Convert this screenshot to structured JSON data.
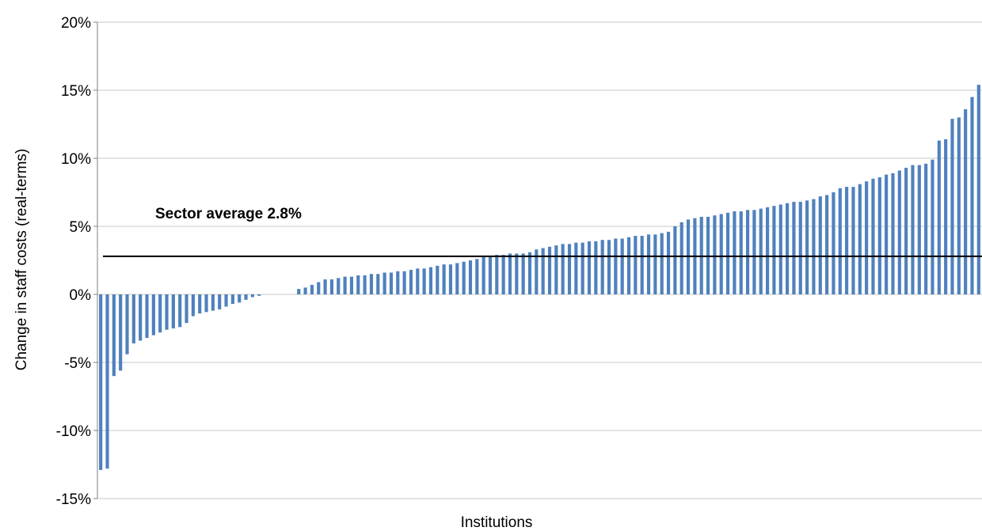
{
  "chart_data": {
    "type": "bar",
    "xlabel": "Institutions",
    "ylabel": "Change in staff costs (real-terms)",
    "ylim": [
      -15,
      20
    ],
    "yticks": [
      20,
      15,
      10,
      5,
      0,
      -5,
      -10,
      -15
    ],
    "ytick_labels": [
      "20%",
      "15%",
      "10%",
      "5%",
      "0%",
      "-5%",
      "-10%",
      "-15%"
    ],
    "grid": true,
    "bar_color": "#4f81bd",
    "values": [
      -12.9,
      -12.8,
      -6.0,
      -5.6,
      -4.4,
      -3.6,
      -3.4,
      -3.2,
      -3.0,
      -2.8,
      -2.6,
      -2.5,
      -2.4,
      -2.1,
      -1.6,
      -1.4,
      -1.3,
      -1.2,
      -1.1,
      -0.9,
      -0.7,
      -0.6,
      -0.4,
      -0.2,
      -0.1,
      0.0,
      0.0,
      0.0,
      0.0,
      0.0,
      0.4,
      0.5,
      0.7,
      0.9,
      1.1,
      1.1,
      1.2,
      1.3,
      1.3,
      1.4,
      1.4,
      1.5,
      1.5,
      1.6,
      1.6,
      1.7,
      1.7,
      1.8,
      1.9,
      1.9,
      2.0,
      2.1,
      2.2,
      2.2,
      2.3,
      2.4,
      2.5,
      2.6,
      2.8,
      2.8,
      2.9,
      2.9,
      3.0,
      3.0,
      3.0,
      3.1,
      3.3,
      3.4,
      3.5,
      3.6,
      3.7,
      3.7,
      3.8,
      3.8,
      3.9,
      3.9,
      4.0,
      4.0,
      4.1,
      4.1,
      4.2,
      4.3,
      4.3,
      4.4,
      4.4,
      4.5,
      4.6,
      5.0,
      5.3,
      5.5,
      5.6,
      5.7,
      5.7,
      5.8,
      5.9,
      6.0,
      6.1,
      6.1,
      6.2,
      6.2,
      6.3,
      6.4,
      6.5,
      6.6,
      6.7,
      6.8,
      6.8,
      6.9,
      7.0,
      7.2,
      7.3,
      7.5,
      7.8,
      7.9,
      7.9,
      8.1,
      8.3,
      8.5,
      8.6,
      8.8,
      8.9,
      9.1,
      9.3,
      9.5,
      9.5,
      9.6,
      9.9,
      11.3,
      11.4,
      12.9,
      13.0,
      13.6,
      14.5,
      15.4
    ],
    "reference_line": {
      "value": 2.8,
      "label": "Sector average  2.8%"
    }
  }
}
